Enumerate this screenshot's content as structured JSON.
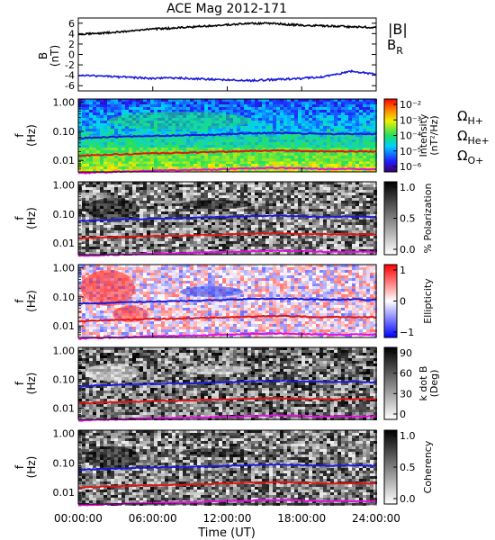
{
  "figure": {
    "title": "ACE Mag 2012-171",
    "time_axis": {
      "label": "Time (UT)",
      "ticks": [
        "00:00:00",
        "06:00:00",
        "12:00:00",
        "18:00:00",
        "24:00:00"
      ]
    }
  },
  "chart_data": [
    {
      "type": "line",
      "panel": "magnetic field",
      "ylabel": "B (nT)",
      "y_ticks": [
        "6",
        "4",
        "2",
        "0",
        "-2",
        "-4",
        "-6"
      ],
      "ylim": [
        -7,
        7
      ],
      "xlim_hours": [
        0,
        24
      ],
      "legend_position": "right",
      "series": [
        {
          "name": "|B|",
          "color": "#000000",
          "x_hours": [
            0,
            2,
            4,
            6,
            8,
            10,
            12,
            14,
            16,
            18,
            20,
            22,
            24
          ],
          "values": [
            3.9,
            4.1,
            4.5,
            4.9,
            5.1,
            5.4,
            5.7,
            6.0,
            5.9,
            5.6,
            5.5,
            5.3,
            5.2
          ]
        },
        {
          "name": "B_R",
          "color": "#1a1ad9",
          "x_hours": [
            0,
            2,
            4,
            6,
            8,
            10,
            12,
            14,
            16,
            18,
            20,
            22,
            24
          ],
          "values": [
            -4.0,
            -4.2,
            -4.4,
            -4.6,
            -4.5,
            -4.7,
            -4.9,
            -5.0,
            -4.8,
            -4.6,
            -4.2,
            -3.2,
            -3.8
          ]
        }
      ]
    },
    {
      "type": "heatmap",
      "panel": "intensity",
      "ylabel": "f (Hz)",
      "y_scale": "log",
      "ylim": [
        0.004,
        1.3
      ],
      "y_ticks": [
        "1.00",
        "0.10",
        "0.01"
      ],
      "colorbar": {
        "label": "Intensity (nT²/Hz)",
        "colormap": "rainbow",
        "ticks": [
          "10⁻²",
          "10⁻³",
          "10⁻⁴",
          "10⁻⁵",
          "10⁻⁶"
        ]
      }
    },
    {
      "type": "heatmap",
      "panel": "polarization",
      "ylabel": "f (Hz)",
      "y_scale": "log",
      "ylim": [
        0.004,
        1.3
      ],
      "y_ticks": [
        "1.00",
        "0.10",
        "0.01"
      ],
      "colorbar": {
        "label": "% Polarization",
        "colormap": "gray",
        "ticks": [
          "1.0",
          "0.5",
          "0.0"
        ]
      }
    },
    {
      "type": "heatmap",
      "panel": "ellipticity",
      "ylabel": "f (Hz)",
      "y_scale": "log",
      "ylim": [
        0.004,
        1.3
      ],
      "y_ticks": [
        "1.00",
        "0.10",
        "0.01"
      ],
      "colorbar": {
        "label": "Ellipticity",
        "colormap": "blue-white-red",
        "ticks": [
          "1",
          "0",
          "−1"
        ]
      }
    },
    {
      "type": "heatmap",
      "panel": "wave normal angle",
      "ylabel": "f (Hz)",
      "y_scale": "log",
      "ylim": [
        0.004,
        1.3
      ],
      "y_ticks": [
        "1.00",
        "0.10",
        "0.01"
      ],
      "colorbar": {
        "label": "k dot B (Deg)",
        "colormap": "gray",
        "ticks": [
          "90",
          "60",
          "30",
          "0"
        ]
      }
    },
    {
      "type": "heatmap",
      "panel": "coherency",
      "ylabel": "f (Hz)",
      "y_scale": "log",
      "ylim": [
        0.004,
        1.3
      ],
      "y_ticks": [
        "1.00",
        "0.10",
        "0.01"
      ],
      "colorbar": {
        "label": "Coherency",
        "colormap": "gray",
        "ticks": [
          "1.0",
          "0.5",
          "0.0"
        ]
      }
    }
  ],
  "gyrofrequencies": {
    "legend": [
      "Ω_H+",
      "Ω_He+",
      "Ω_O+"
    ],
    "legend_labels": {
      "omega": "Ω",
      "h": {
        "sub": "H+",
        "color": "#1a1ad9"
      },
      "he": {
        "sub": "He+",
        "color": "#e01515"
      },
      "o": {
        "sub": "O+",
        "color": "#e010e0"
      }
    },
    "x_hours": [
      0,
      2,
      4,
      6,
      8,
      10,
      12,
      14,
      16,
      18,
      20,
      22,
      24
    ],
    "H_plus_hz": [
      0.058,
      0.062,
      0.066,
      0.07,
      0.072,
      0.075,
      0.08,
      0.085,
      0.088,
      0.085,
      0.08,
      0.082,
      0.08
    ],
    "He_plus_hz": [
      0.0145,
      0.0155,
      0.0165,
      0.0175,
      0.018,
      0.019,
      0.02,
      0.021,
      0.022,
      0.021,
      0.02,
      0.0205,
      0.02
    ],
    "O_plus_hz": [
      0.0036,
      0.0039,
      0.0041,
      0.0044,
      0.0045,
      0.0047,
      0.005,
      0.0053,
      0.0055,
      0.0053,
      0.005,
      0.0051,
      0.005
    ]
  },
  "labels": {
    "f": "f",
    "hz": "(Hz)",
    "b": "B",
    "nt": "(nT)",
    "absB": "|B|",
    "br_b": "B",
    "br_sub": "R",
    "intensity": "Intensity",
    "intensity_units": "(nT²/Hz)",
    "polarization": "% Polarization",
    "ellipticity": "Ellipticity",
    "kdotb": "k dot B",
    "deg": "(Deg)",
    "coherency": "Coherency"
  }
}
